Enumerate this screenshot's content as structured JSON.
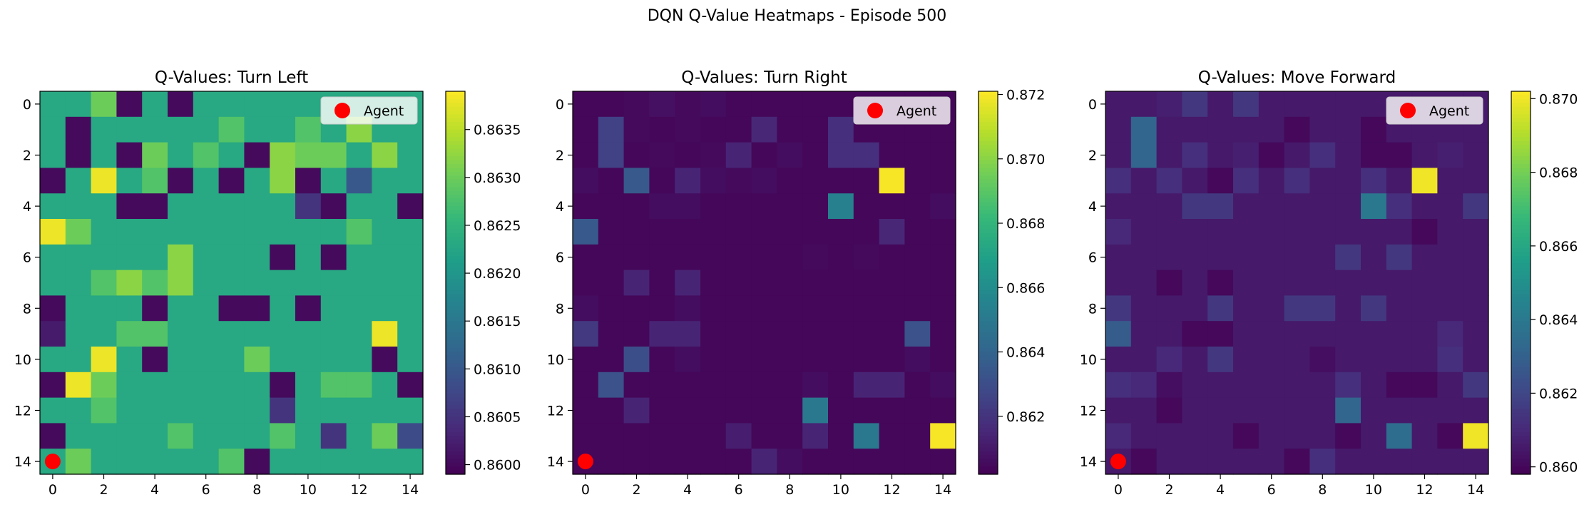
{
  "suptitle": "DQN Q-Value Heatmaps - Episode 500",
  "chart_data": [
    {
      "type": "heatmap",
      "title": "Q-Values: Turn Left",
      "xlabel": "",
      "ylabel": "",
      "xticks": [
        "0",
        "2",
        "4",
        "6",
        "8",
        "10",
        "12",
        "14"
      ],
      "yticks": [
        "0",
        "2",
        "4",
        "6",
        "8",
        "10",
        "12",
        "14"
      ],
      "colorbar_ticks": [
        "0.8600",
        "0.8605",
        "0.8610",
        "0.8615",
        "0.8620",
        "0.8625",
        "0.8630",
        "0.8635"
      ],
      "colorbar_range": [
        0.8599,
        0.8639
      ],
      "colormap": "viridis",
      "legend": {
        "label": "Agent",
        "marker_color": "#ff0000",
        "placement": "upper right"
      },
      "agent_position": [
        0,
        14
      ],
      "grid_size": 15,
      "matrix": [
        [
          0.8623,
          0.8623,
          0.863,
          0.86,
          0.8623,
          0.86,
          0.8623,
          0.8623,
          0.8623,
          0.8623,
          0.8623,
          0.8623,
          0.8623,
          0.8623,
          0.8623
        ],
        [
          0.8623,
          0.86,
          0.8623,
          0.8623,
          0.8623,
          0.8623,
          0.8623,
          0.8628,
          0.8623,
          0.8623,
          0.8628,
          0.8623,
          0.8632,
          0.8623,
          0.8623
        ],
        [
          0.8623,
          0.86,
          0.8623,
          0.86,
          0.863,
          0.8623,
          0.8628,
          0.8623,
          0.86,
          0.8632,
          0.863,
          0.863,
          0.8623,
          0.8632,
          0.8623
        ],
        [
          0.86,
          0.8623,
          0.8638,
          0.8623,
          0.8628,
          0.86,
          0.8623,
          0.86,
          0.8623,
          0.8632,
          0.86,
          0.8623,
          0.861,
          0.8623,
          0.8623
        ],
        [
          0.8623,
          0.8623,
          0.8623,
          0.86,
          0.86,
          0.8623,
          0.8623,
          0.8623,
          0.8623,
          0.8623,
          0.8605,
          0.86,
          0.8623,
          0.8623,
          0.86
        ],
        [
          0.8638,
          0.863,
          0.8623,
          0.8623,
          0.8623,
          0.8623,
          0.8623,
          0.8623,
          0.8623,
          0.8623,
          0.8623,
          0.8623,
          0.8628,
          0.8623,
          0.8623
        ],
        [
          0.8623,
          0.8623,
          0.8623,
          0.8623,
          0.8623,
          0.8632,
          0.8623,
          0.8623,
          0.8623,
          0.86,
          0.8623,
          0.86,
          0.8623,
          0.8623,
          0.8623
        ],
        [
          0.8623,
          0.8623,
          0.8628,
          0.8632,
          0.8628,
          0.8632,
          0.8623,
          0.8623,
          0.8623,
          0.8623,
          0.8623,
          0.8623,
          0.8623,
          0.8623,
          0.8623
        ],
        [
          0.86,
          0.8623,
          0.8623,
          0.8623,
          0.86,
          0.8623,
          0.8623,
          0.86,
          0.86,
          0.8623,
          0.86,
          0.8623,
          0.8623,
          0.8623,
          0.8623
        ],
        [
          0.8602,
          0.8623,
          0.8623,
          0.8628,
          0.8628,
          0.8623,
          0.8623,
          0.8623,
          0.8623,
          0.8623,
          0.8623,
          0.8623,
          0.8623,
          0.8638,
          0.8623
        ],
        [
          0.8623,
          0.8623,
          0.8638,
          0.8623,
          0.86,
          0.8623,
          0.8623,
          0.8623,
          0.863,
          0.8623,
          0.8623,
          0.8623,
          0.8623,
          0.86,
          0.8623
        ],
        [
          0.86,
          0.8638,
          0.863,
          0.8623,
          0.8623,
          0.8623,
          0.8623,
          0.8623,
          0.8623,
          0.86,
          0.8623,
          0.8628,
          0.8628,
          0.8623,
          0.86
        ],
        [
          0.8623,
          0.8623,
          0.8628,
          0.8623,
          0.8623,
          0.8623,
          0.8623,
          0.8623,
          0.8623,
          0.8605,
          0.8623,
          0.8623,
          0.8623,
          0.8623,
          0.8623
        ],
        [
          0.86,
          0.8623,
          0.8623,
          0.8623,
          0.8623,
          0.8628,
          0.8623,
          0.8623,
          0.8623,
          0.8628,
          0.8623,
          0.8605,
          0.8623,
          0.863,
          0.8608
        ],
        [
          0.8623,
          0.863,
          0.8623,
          0.8623,
          0.8623,
          0.8623,
          0.8623,
          0.8628,
          0.86,
          0.8623,
          0.8623,
          0.8623,
          0.8623,
          0.8623,
          0.8623
        ]
      ]
    },
    {
      "type": "heatmap",
      "title": "Q-Values: Turn Right",
      "xlabel": "",
      "ylabel": "",
      "xticks": [
        "0",
        "2",
        "4",
        "6",
        "8",
        "10",
        "12",
        "14"
      ],
      "yticks": [
        "0",
        "2",
        "4",
        "6",
        "8",
        "10",
        "12",
        "14"
      ],
      "colorbar_ticks": [
        "0.862",
        "0.864",
        "0.866",
        "0.868",
        "0.870",
        "0.872"
      ],
      "colorbar_range": [
        0.8602,
        0.8721
      ],
      "colormap": "viridis",
      "legend": {
        "label": "Agent",
        "marker_color": "#ff0000",
        "placement": "upper right"
      },
      "agent_position": [
        0,
        14
      ],
      "grid_size": 15,
      "matrix": [
        [
          0.8604,
          0.8604,
          0.8605,
          0.8607,
          0.8605,
          0.8606,
          0.8604,
          0.8604,
          0.8604,
          0.8604,
          0.8604,
          0.8604,
          0.8604,
          0.8604,
          0.8604
        ],
        [
          0.8604,
          0.8625,
          0.8605,
          0.8604,
          0.8605,
          0.8604,
          0.8604,
          0.8615,
          0.8604,
          0.8604,
          0.8618,
          0.8604,
          0.8604,
          0.8604,
          0.8604
        ],
        [
          0.8604,
          0.8625,
          0.8604,
          0.8605,
          0.8604,
          0.8605,
          0.8614,
          0.8604,
          0.8606,
          0.8604,
          0.8618,
          0.8618,
          0.8604,
          0.8604,
          0.8604
        ],
        [
          0.8606,
          0.8604,
          0.8635,
          0.8604,
          0.8614,
          0.8606,
          0.8605,
          0.8606,
          0.8604,
          0.8604,
          0.8604,
          0.8604,
          0.872,
          0.8604,
          0.8604
        ],
        [
          0.8604,
          0.8604,
          0.8604,
          0.8606,
          0.8606,
          0.8604,
          0.8604,
          0.8604,
          0.8604,
          0.8604,
          0.8654,
          0.8604,
          0.8604,
          0.8604,
          0.8606
        ],
        [
          0.8635,
          0.8604,
          0.8604,
          0.8604,
          0.8604,
          0.8604,
          0.8604,
          0.8604,
          0.8604,
          0.8604,
          0.8604,
          0.8604,
          0.8615,
          0.8604,
          0.8604
        ],
        [
          0.8604,
          0.8604,
          0.8604,
          0.8604,
          0.8604,
          0.8604,
          0.8604,
          0.8604,
          0.8604,
          0.8605,
          0.8604,
          0.8605,
          0.8604,
          0.8604,
          0.8604
        ],
        [
          0.8604,
          0.8604,
          0.8614,
          0.8604,
          0.8614,
          0.8604,
          0.8604,
          0.8604,
          0.8604,
          0.8604,
          0.8604,
          0.8604,
          0.8604,
          0.8604,
          0.8604
        ],
        [
          0.8606,
          0.8604,
          0.8604,
          0.8604,
          0.8606,
          0.8604,
          0.8604,
          0.8604,
          0.8604,
          0.8604,
          0.8604,
          0.8604,
          0.8604,
          0.8604,
          0.8604
        ],
        [
          0.8622,
          0.8604,
          0.8604,
          0.8614,
          0.8614,
          0.8604,
          0.8604,
          0.8604,
          0.8604,
          0.8604,
          0.8604,
          0.8604,
          0.8604,
          0.8632,
          0.8604
        ],
        [
          0.8604,
          0.8604,
          0.863,
          0.8604,
          0.8606,
          0.8604,
          0.8604,
          0.8604,
          0.8604,
          0.8604,
          0.8604,
          0.8604,
          0.8604,
          0.8606,
          0.8604
        ],
        [
          0.8604,
          0.8632,
          0.8604,
          0.8604,
          0.8604,
          0.8604,
          0.8604,
          0.8604,
          0.8604,
          0.8606,
          0.8604,
          0.8614,
          0.8614,
          0.8604,
          0.8606
        ],
        [
          0.8604,
          0.8604,
          0.8614,
          0.8604,
          0.8604,
          0.8604,
          0.8604,
          0.8604,
          0.8604,
          0.865,
          0.8604,
          0.8604,
          0.8604,
          0.8604,
          0.8604
        ],
        [
          0.8604,
          0.8604,
          0.8604,
          0.8604,
          0.8604,
          0.8604,
          0.8612,
          0.8604,
          0.8604,
          0.8614,
          0.8604,
          0.865,
          0.8604,
          0.8604,
          0.872
        ],
        [
          0.8604,
          0.8604,
          0.8604,
          0.8604,
          0.8604,
          0.8604,
          0.8604,
          0.8614,
          0.8606,
          0.8604,
          0.8604,
          0.8604,
          0.8604,
          0.8604,
          0.8604
        ]
      ]
    },
    {
      "type": "heatmap",
      "title": "Q-Values: Move Forward",
      "xlabel": "",
      "ylabel": "",
      "xticks": [
        "0",
        "2",
        "4",
        "6",
        "8",
        "10",
        "12",
        "14"
      ],
      "yticks": [
        "0",
        "2",
        "4",
        "6",
        "8",
        "10",
        "12",
        "14"
      ],
      "colorbar_ticks": [
        "0.860",
        "0.862",
        "0.864",
        "0.866",
        "0.868",
        "0.870"
      ],
      "colorbar_range": [
        0.8598,
        0.8702
      ],
      "colormap": "viridis",
      "legend": {
        "label": "Agent",
        "marker_color": "#ff0000",
        "placement": "upper right"
      },
      "agent_position": [
        0,
        14
      ],
      "grid_size": 15,
      "matrix": [
        [
          0.8605,
          0.8605,
          0.8607,
          0.8615,
          0.8605,
          0.8615,
          0.8605,
          0.8605,
          0.8605,
          0.8605,
          0.8605,
          0.8605,
          0.8605,
          0.8605,
          0.8605
        ],
        [
          0.8605,
          0.8632,
          0.8605,
          0.8605,
          0.8605,
          0.8605,
          0.8605,
          0.86,
          0.8605,
          0.8605,
          0.86,
          0.8605,
          0.8605,
          0.8605,
          0.8605
        ],
        [
          0.8605,
          0.8632,
          0.8605,
          0.8612,
          0.8605,
          0.8607,
          0.86,
          0.8605,
          0.8612,
          0.8605,
          0.86,
          0.86,
          0.8605,
          0.8607,
          0.8605
        ],
        [
          0.8612,
          0.8605,
          0.8612,
          0.8605,
          0.86,
          0.8612,
          0.8605,
          0.8612,
          0.8605,
          0.8605,
          0.8612,
          0.8605,
          0.87,
          0.8605,
          0.8605
        ],
        [
          0.8605,
          0.8605,
          0.8605,
          0.8615,
          0.8615,
          0.8605,
          0.8605,
          0.8605,
          0.8605,
          0.8605,
          0.864,
          0.8612,
          0.8605,
          0.8605,
          0.8615
        ],
        [
          0.861,
          0.8605,
          0.8605,
          0.8605,
          0.8605,
          0.8605,
          0.8605,
          0.8605,
          0.8605,
          0.8605,
          0.8605,
          0.8605,
          0.86,
          0.8605,
          0.8605
        ],
        [
          0.8605,
          0.8605,
          0.8605,
          0.8605,
          0.8605,
          0.8605,
          0.8605,
          0.8605,
          0.8605,
          0.8615,
          0.8605,
          0.8615,
          0.8605,
          0.8605,
          0.8605
        ],
        [
          0.8605,
          0.8605,
          0.86,
          0.8605,
          0.86,
          0.8605,
          0.8605,
          0.8605,
          0.8605,
          0.8605,
          0.8605,
          0.8605,
          0.8605,
          0.8605,
          0.8605
        ],
        [
          0.8615,
          0.8605,
          0.8605,
          0.8605,
          0.8615,
          0.8605,
          0.8605,
          0.8615,
          0.8615,
          0.8605,
          0.8615,
          0.8605,
          0.8605,
          0.8605,
          0.8605
        ],
        [
          0.8628,
          0.8605,
          0.8605,
          0.86,
          0.86,
          0.8605,
          0.8605,
          0.8605,
          0.8605,
          0.8605,
          0.8605,
          0.8605,
          0.8605,
          0.861,
          0.8605
        ],
        [
          0.8605,
          0.8605,
          0.861,
          0.8605,
          0.8615,
          0.8605,
          0.8605,
          0.8605,
          0.8602,
          0.8605,
          0.8605,
          0.8605,
          0.8605,
          0.8612,
          0.8605
        ],
        [
          0.8612,
          0.861,
          0.8602,
          0.8605,
          0.8605,
          0.8605,
          0.8605,
          0.8605,
          0.8605,
          0.8612,
          0.8605,
          0.86,
          0.86,
          0.8605,
          0.8615
        ],
        [
          0.8605,
          0.8605,
          0.86,
          0.8605,
          0.8605,
          0.8605,
          0.8605,
          0.8605,
          0.8605,
          0.8632,
          0.8605,
          0.8605,
          0.8605,
          0.8605,
          0.8605
        ],
        [
          0.861,
          0.8605,
          0.8605,
          0.8605,
          0.8605,
          0.86,
          0.8605,
          0.8605,
          0.8605,
          0.86,
          0.8605,
          0.8635,
          0.8605,
          0.86,
          0.87
        ],
        [
          0.8605,
          0.86,
          0.8605,
          0.8605,
          0.8605,
          0.8605,
          0.8605,
          0.86,
          0.8612,
          0.8605,
          0.8605,
          0.8605,
          0.8605,
          0.8605,
          0.8605
        ]
      ]
    }
  ]
}
